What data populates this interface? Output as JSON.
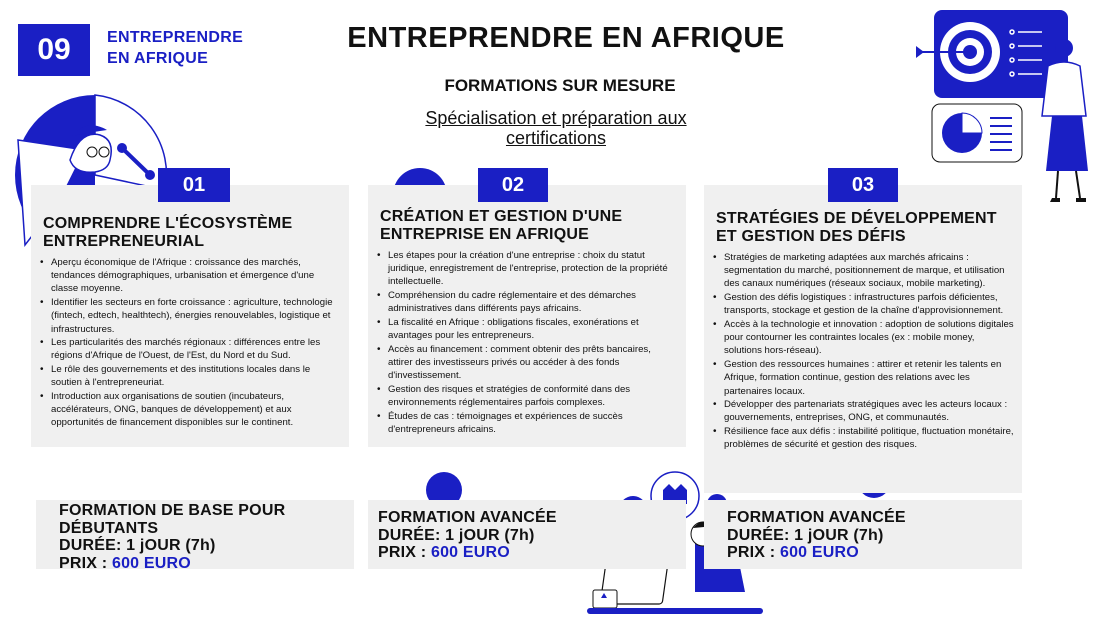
{
  "header": {
    "badge_number": "09",
    "top_label": "ENTREPRENDRE EN AFRIQUE",
    "title": "ENTREPRENDRE EN AFRIQUE",
    "subtitle": "FORMATIONS SUR MESURE",
    "tagline": "Spécialisation et préparation aux certifications"
  },
  "colors": {
    "accent": "#1a1fc4",
    "card_bg": "#f0f0f0"
  },
  "modules": [
    {
      "number": "01",
      "title": "COMPRENDRE L'ÉCOSYSTÈME ENTREPRENEURIAL",
      "items": [
        "Aperçu économique de l'Afrique : croissance des marchés, tendances démographiques, urbanisation et émergence d'une classe moyenne.",
        "Identifier les secteurs en forte croissance : agriculture, technologie (fintech, edtech, healthtech), énergies renouvelables, logistique et infrastructures.",
        "Les particularités des marchés régionaux : différences entre les régions d'Afrique de l'Ouest, de l'Est, du Nord et du Sud.",
        "Le rôle des gouvernements et des institutions locales dans le soutien à l'entrepreneuriat.",
        "Introduction aux organisations de soutien (incubateurs, accélérateurs, ONG, banques de développement) et aux opportunités de financement disponibles sur le continent."
      ],
      "footer": {
        "level": "FORMATION DE BASE POUR DÉBUTANTS",
        "duration": "DURÉE: 1 jOUR (7h)",
        "price_label": "PRIX :",
        "price": "600 EURO"
      }
    },
    {
      "number": "02",
      "title": "CRÉATION ET GESTION D'UNE ENTREPRISE EN AFRIQUE",
      "items": [
        "Les étapes pour la création d'une entreprise : choix du statut juridique, enregistrement de l'entreprise, protection de la propriété intellectuelle.",
        "Compréhension du cadre réglementaire et des démarches administratives dans différents pays africains.",
        "La fiscalité en Afrique : obligations fiscales, exonérations et avantages pour les entrepreneurs.",
        "Accès au financement : comment obtenir des prêts bancaires, attirer des investisseurs privés ou accéder à des fonds d'investissement.",
        "Gestion des risques et stratégies de conformité dans des environnements réglementaires parfois complexes.",
        "Études de cas : témoignages et expériences de succès d'entrepreneurs africains."
      ],
      "footer": {
        "level": "FORMATION AVANCÉE",
        "duration": "DURÉE: 1 jOUR (7h)",
        "price_label": "PRIX :",
        "price": "600 EURO"
      }
    },
    {
      "number": "03",
      "title": "STRATÉGIES DE DÉVELOPPEMENT ET GESTION DES DÉFIS",
      "items": [
        "Stratégies de marketing adaptées aux marchés africains : segmentation du marché, positionnement de marque, et utilisation des canaux numériques (réseaux sociaux, mobile marketing).",
        "Gestion des défis logistiques : infrastructures parfois déficientes, transports, stockage et gestion de la chaîne d'approvisionnement.",
        "Accès à la technologie et innovation : adoption de solutions digitales pour contourner les contraintes locales (ex : mobile money, solutions hors-réseau).",
        "Gestion des ressources humaines : attirer et retenir les talents en Afrique, formation continue, gestion des relations avec les partenaires locaux.",
        "Développer des partenariats stratégiques avec les acteurs locaux : gouvernements, entreprises, ONG, et communautés.",
        "Résilience face aux défis : instabilité politique, fluctuation monétaire, problèmes de sécurité et gestion des risques."
      ],
      "footer": {
        "level": "FORMATION AVANCÉE",
        "duration": "DURÉE: 1 jOUR (7h)",
        "price_label": "PRIX :",
        "price": "600 EURO"
      }
    }
  ],
  "illustrations": {
    "top_left": "man-with-pie-chart-illustration",
    "top_right": "woman-presenting-target-board-illustration",
    "bottom_center": "person-at-laptop-illustration"
  }
}
